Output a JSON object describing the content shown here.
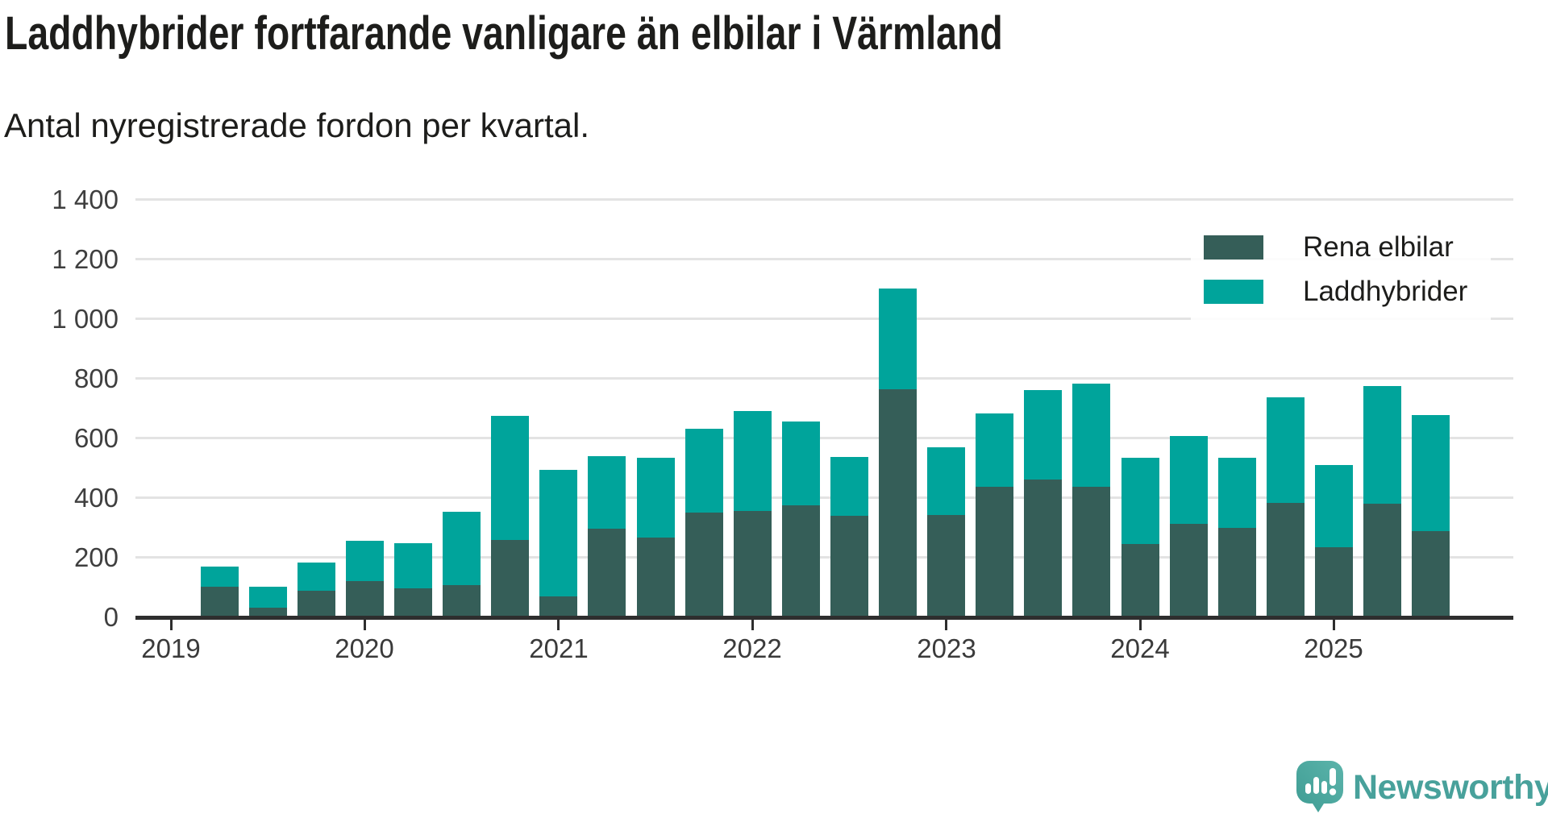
{
  "header": {
    "title": "Laddhybrider fortfarande vanligare än elbilar i Värmland",
    "subtitle": "Antal nyregistrerade fordon per kvartal."
  },
  "footer": {
    "brand": "Newsworthy"
  },
  "colors": {
    "elbilar": "#355e58",
    "laddhybrider": "#00a49b",
    "gridline": "#e3e3e3",
    "axis": "#2e2e2e",
    "text": "#1d1d1b",
    "axis_text": "#3f3f3f",
    "brand_teal": "#48a19b",
    "brand_bubble_light": "#5cb4ab",
    "brand_bubble_dark": "#3e9c93"
  },
  "chart_data": {
    "type": "bar",
    "stacked": true,
    "title": "Laddhybrider fortfarande vanligare än elbilar i Värmland",
    "subtitle": "Antal nyregistrerade fordon per kvartal.",
    "xlabel": "",
    "ylabel": "",
    "ylim": [
      0,
      1400
    ],
    "yticks": [
      0,
      200,
      400,
      600,
      800,
      1000,
      1200,
      1400
    ],
    "ytick_labels": [
      "0",
      "200",
      "400",
      "600",
      "800",
      "1 000",
      "1 200",
      "1 400"
    ],
    "grid": "horizontal",
    "legend_position": "top-right",
    "year_ticks": [
      2019,
      2020,
      2021,
      2022,
      2023,
      2024,
      2025
    ],
    "x": [
      "2019 K2",
      "2019 K3",
      "2019 K4",
      "2020 K1",
      "2020 K2",
      "2020 K3",
      "2020 K4",
      "2021 K1",
      "2021 K2",
      "2021 K3",
      "2021 K4",
      "2022 K1",
      "2022 K2",
      "2022 K3",
      "2022 K4",
      "2023 K1",
      "2023 K2",
      "2023 K3",
      "2023 K4",
      "2024 K1",
      "2024 K2",
      "2024 K3",
      "2024 K4",
      "2025 K1",
      "2025 K2",
      "2025 K3"
    ],
    "series": [
      {
        "name": "Rena elbilar",
        "color": "#355e58",
        "values": [
          103,
          33,
          89,
          121,
          96,
          107,
          259,
          69,
          296,
          268,
          350,
          358,
          376,
          341,
          765,
          342,
          438,
          462,
          438,
          246,
          314,
          300,
          385,
          236,
          380,
          288
        ]
      },
      {
        "name": "Laddhybrider",
        "color": "#00a49b",
        "values": [
          68,
          70,
          95,
          135,
          150,
          247,
          415,
          425,
          244,
          267,
          281,
          335,
          282,
          196,
          338,
          227,
          247,
          300,
          347,
          288,
          295,
          234,
          353,
          277,
          395,
          390
        ]
      }
    ]
  }
}
